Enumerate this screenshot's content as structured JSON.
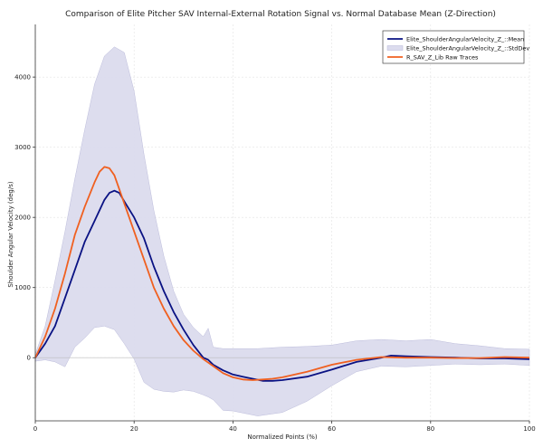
{
  "chart_data": {
    "type": "line",
    "title": "Comparison of Elite Pitcher SAV Internal-External Rotation Signal vs. Normal Database Mean (Z-Direction)",
    "xlabel": "Normalized Points (%)",
    "ylabel": "Shoulder Angular Velocity (deg/s)",
    "xlim": [
      0,
      100
    ],
    "ylim": [
      -900,
      4750
    ],
    "xticks": [
      0,
      20,
      40,
      60,
      80,
      100
    ],
    "yticks": [
      0,
      1000,
      2000,
      3000,
      4000
    ],
    "grid": true,
    "legend_position": "top-right",
    "colors": {
      "mean": "#0a1283",
      "band": "#dcdcee",
      "band_edge": "#b8b8d8",
      "raw": "#f06020"
    },
    "band": {
      "name": "Elite_ShoulderAngularVelocity_Z_::StdDev",
      "x": [
        0,
        2,
        4,
        6,
        8,
        10,
        12,
        14,
        16,
        18,
        20,
        22,
        24,
        26,
        28,
        30,
        32,
        34,
        35,
        36,
        38,
        40,
        45,
        50,
        55,
        60,
        65,
        70,
        75,
        80,
        85,
        90,
        95,
        100
      ],
      "upper": [
        50,
        450,
        1100,
        1800,
        2550,
        3250,
        3900,
        4300,
        4430,
        4350,
        3800,
        2900,
        2100,
        1450,
        950,
        620,
        430,
        300,
        420,
        150,
        130,
        130,
        130,
        150,
        160,
        180,
        240,
        260,
        240,
        260,
        200,
        170,
        130,
        120
      ],
      "lower": [
        -50,
        -30,
        -60,
        -130,
        150,
        280,
        430,
        450,
        400,
        200,
        -20,
        -350,
        -450,
        -480,
        -490,
        -460,
        -480,
        -530,
        -560,
        -600,
        -750,
        -760,
        -830,
        -780,
        -620,
        -400,
        -200,
        -120,
        -130,
        -110,
        -90,
        -100,
        -90,
        -110
      ]
    },
    "series": [
      {
        "name": "Elite_ShoulderAngularVelocity_Z_::Mean",
        "x": [
          0,
          2,
          4,
          6,
          8,
          10,
          12,
          14,
          15,
          16,
          17,
          18,
          20,
          22,
          24,
          26,
          28,
          30,
          32,
          34,
          35,
          36,
          38,
          40,
          42,
          44,
          46,
          48,
          50,
          55,
          60,
          65,
          70,
          72,
          75,
          80,
          85,
          90,
          95,
          100
        ],
        "y": [
          0,
          200,
          450,
          850,
          1250,
          1650,
          1950,
          2250,
          2350,
          2380,
          2350,
          2230,
          2000,
          1700,
          1300,
          950,
          650,
          400,
          180,
          0,
          -30,
          -100,
          -180,
          -240,
          -270,
          -300,
          -330,
          -330,
          -320,
          -270,
          -170,
          -60,
          0,
          30,
          20,
          10,
          0,
          -10,
          -10,
          -20
        ]
      },
      {
        "name": "R_SAV_Z_Lib Raw Traces",
        "x": [
          0,
          2,
          4,
          6,
          8,
          10,
          12,
          13,
          14,
          15,
          16,
          18,
          20,
          22,
          24,
          26,
          28,
          30,
          32,
          34,
          36,
          38,
          40,
          42,
          44,
          46,
          48,
          50,
          55,
          60,
          65,
          70,
          75,
          80,
          85,
          90,
          95,
          100
        ],
        "y": [
          0,
          300,
          700,
          1200,
          1750,
          2150,
          2500,
          2650,
          2720,
          2700,
          2600,
          2200,
          1800,
          1400,
          1000,
          700,
          450,
          250,
          100,
          -20,
          -120,
          -220,
          -280,
          -310,
          -320,
          -310,
          -300,
          -280,
          -200,
          -100,
          -30,
          10,
          0,
          0,
          -5,
          -5,
          10,
          0
        ]
      }
    ]
  }
}
